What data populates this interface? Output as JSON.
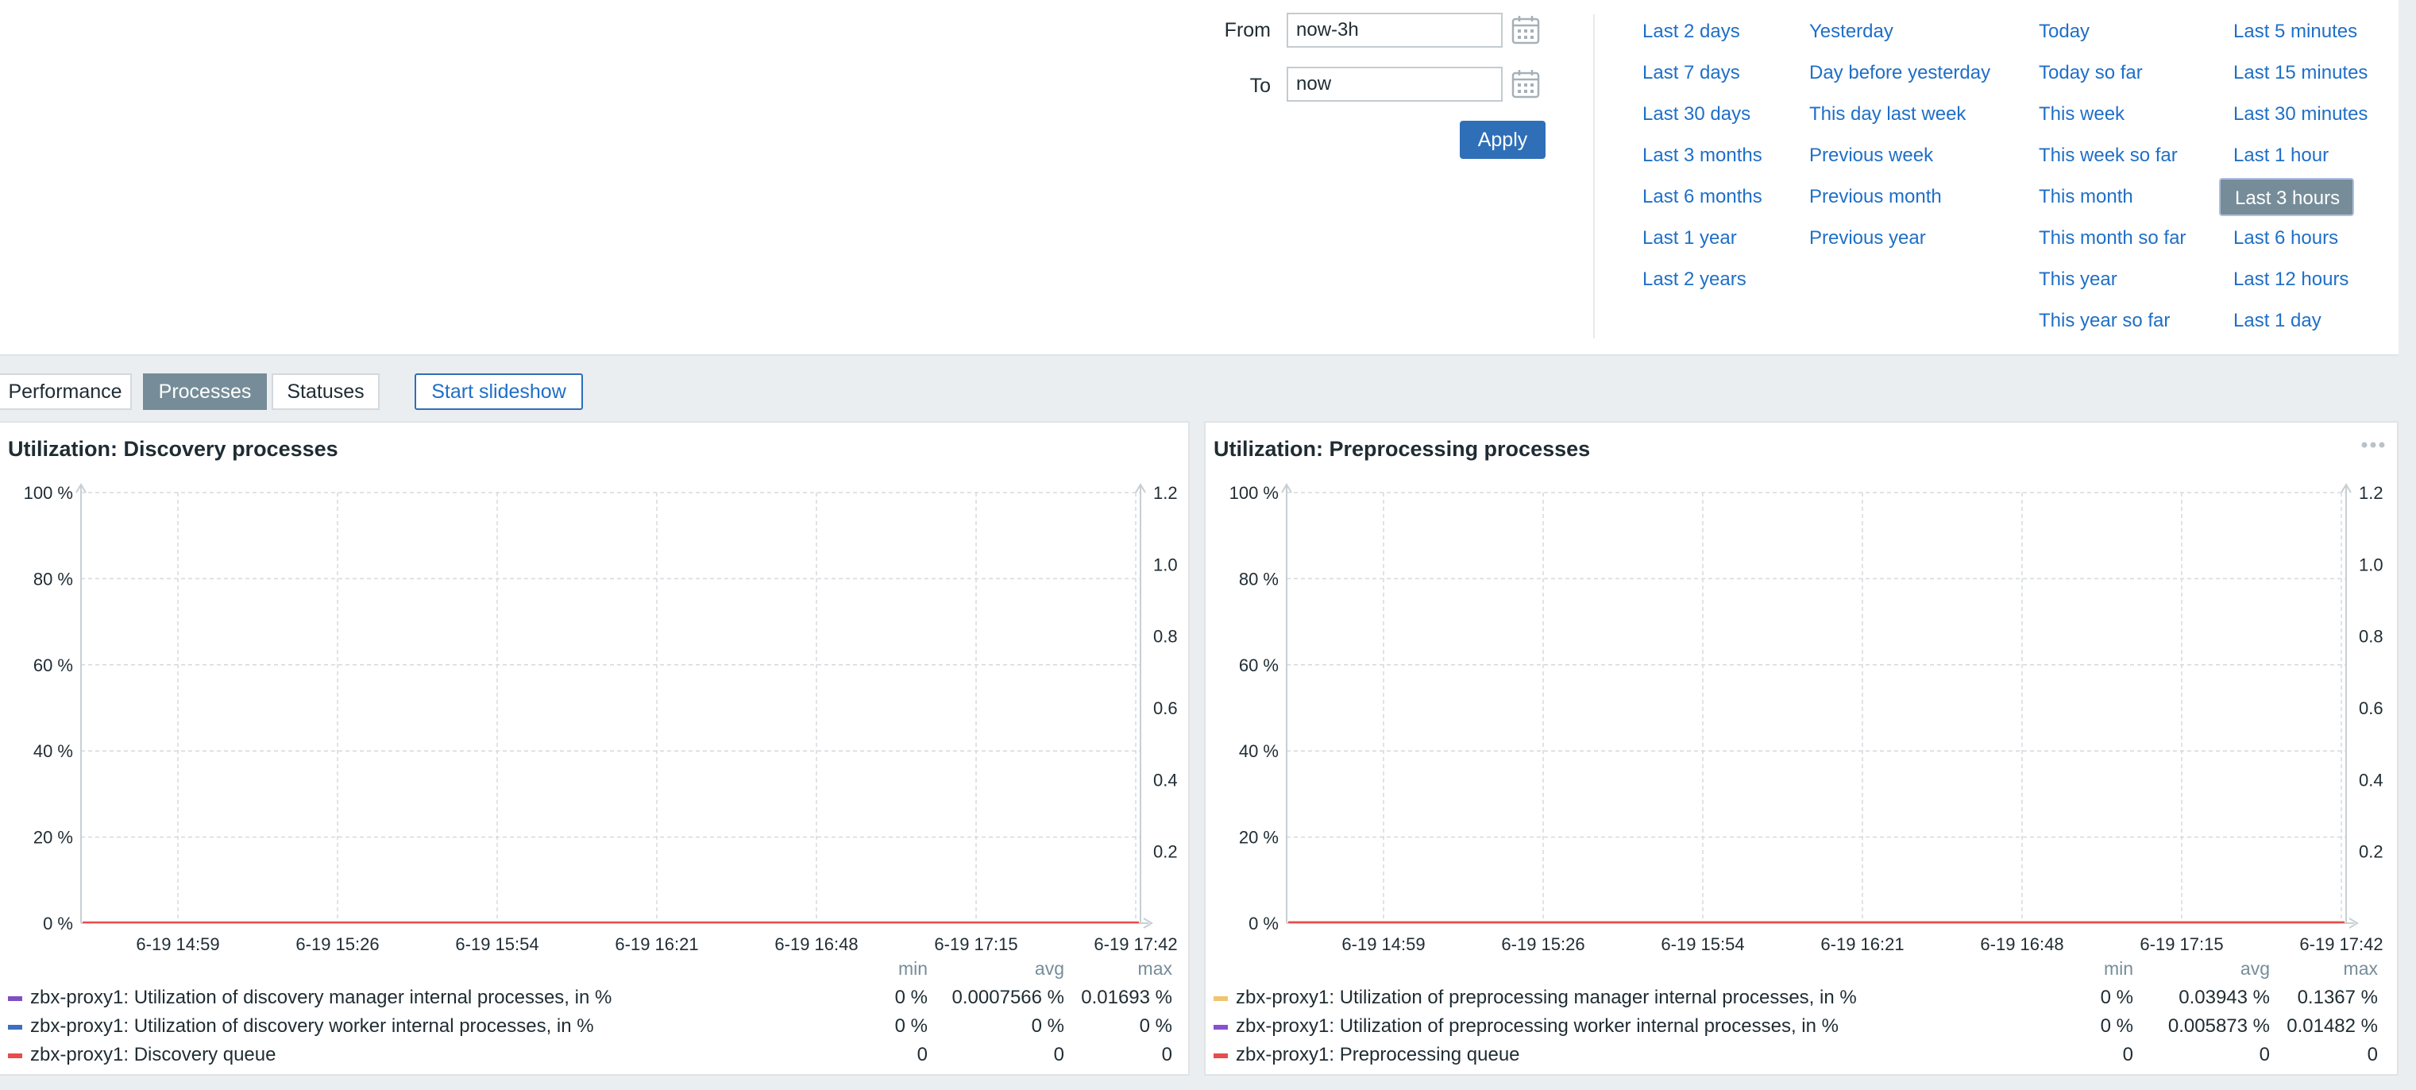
{
  "time_selector": {
    "from_label": "From",
    "from_value": "now-3h",
    "to_label": "To",
    "to_value": "now",
    "apply_label": "Apply",
    "quick_columns": [
      [
        "Last 2 days",
        "Last 7 days",
        "Last 30 days",
        "Last 3 months",
        "Last 6 months",
        "Last 1 year",
        "Last 2 years"
      ],
      [
        "Yesterday",
        "Day before yesterday",
        "This day last week",
        "Previous week",
        "Previous month",
        "Previous year"
      ],
      [
        "Today",
        "Today so far",
        "This week",
        "This week so far",
        "This month",
        "This month so far",
        "This year",
        "This year so far"
      ],
      [
        "Last 5 minutes",
        "Last 15 minutes",
        "Last 30 minutes",
        "Last 1 hour",
        "Last 3 hours",
        "Last 6 hours",
        "Last 12 hours",
        "Last 1 day"
      ]
    ],
    "selected": "Last 3 hours"
  },
  "tabs": [
    {
      "label": "Performance",
      "active": false
    },
    {
      "label": "Processes",
      "active": true
    },
    {
      "label": "Statuses",
      "active": false
    }
  ],
  "slideshow_label": "Start slideshow",
  "widgets": [
    {
      "title": "Utilization: Discovery processes",
      "chart_data": {
        "type": "line",
        "x_ticks": [
          "6-19 14:59",
          "6-19 15:26",
          "6-19 15:54",
          "6-19 16:21",
          "6-19 16:48",
          "6-19 17:15",
          "6-19 17:42"
        ],
        "y_left_ticks": [
          "0 %",
          "20 %",
          "40 %",
          "60 %",
          "80 %",
          "100 %"
        ],
        "y_right_ticks": [
          "0.2",
          "0.4",
          "0.6",
          "0.8",
          "1.0",
          "1.2"
        ],
        "y_left_range": [
          0,
          100
        ],
        "y_right_range": [
          0,
          1.2
        ],
        "grid": true,
        "legend_headers": [
          "min",
          "avg",
          "max"
        ],
        "series": [
          {
            "name": "zbx-proxy1: Utilization of discovery manager internal processes, in %",
            "color": "#7f4fc2",
            "min": "0 %",
            "avg": "0.0007566 %",
            "max": "0.01693 %"
          },
          {
            "name": "zbx-proxy1: Utilization of discovery worker internal processes, in %",
            "color": "#3d6fc0",
            "min": "0 %",
            "avg": "0 %",
            "max": "0 %"
          },
          {
            "name": "zbx-proxy1: Discovery queue",
            "color": "#e84c4c",
            "min": "0",
            "avg": "0",
            "max": "0"
          }
        ]
      }
    },
    {
      "title": "Utilization: Preprocessing processes",
      "chart_data": {
        "type": "line",
        "x_ticks": [
          "6-19 14:59",
          "6-19 15:26",
          "6-19 15:54",
          "6-19 16:21",
          "6-19 16:48",
          "6-19 17:15",
          "6-19 17:42"
        ],
        "y_left_ticks": [
          "0 %",
          "20 %",
          "40 %",
          "60 %",
          "80 %",
          "100 %"
        ],
        "y_right_ticks": [
          "0.2",
          "0.4",
          "0.6",
          "0.8",
          "1.0",
          "1.2"
        ],
        "y_left_range": [
          0,
          100
        ],
        "y_right_range": [
          0,
          1.2
        ],
        "grid": true,
        "legend_headers": [
          "min",
          "avg",
          "max"
        ],
        "series": [
          {
            "name": "zbx-proxy1: Utilization of preprocessing manager internal processes, in %",
            "color": "#f2c46f",
            "min": "0 %",
            "avg": "0.03943 %",
            "max": "0.1367 %"
          },
          {
            "name": "zbx-proxy1: Utilization of preprocessing worker internal processes, in %",
            "color": "#8a4fd1",
            "min": "0 %",
            "avg": "0.005873 %",
            "max": "0.01482 %"
          },
          {
            "name": "zbx-proxy1: Preprocessing queue",
            "color": "#e84c4c",
            "min": "0",
            "avg": "0",
            "max": "0"
          }
        ]
      }
    }
  ]
}
